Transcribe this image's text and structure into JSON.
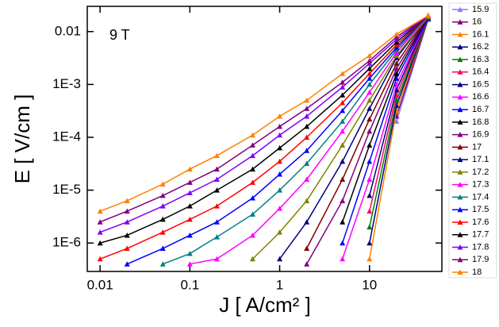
{
  "chart_data": {
    "type": "line",
    "annotation": "9 T",
    "x_label": "J [ A/cm² ]",
    "y_label": "E [ V/cm ]",
    "x_log": true,
    "y_log": true,
    "legend": "right",
    "xlim": [
      0.0072,
      64
    ],
    "ylim": [
      2.9e-07,
      0.03
    ],
    "xticks": [
      0.01,
      0.1,
      1,
      10
    ],
    "yticks": [
      {
        "value": 1e-06,
        "label": "1E-6"
      },
      {
        "value": 1e-05,
        "label": "1E-5"
      },
      {
        "value": 0.0001,
        "label": "1E-4"
      },
      {
        "value": 0.001,
        "label": "1E-3"
      },
      0.01
    ],
    "x": [
      0.01,
      0.02,
      0.05,
      0.1,
      0.2,
      0.5,
      1,
      2,
      5,
      10,
      20,
      45
    ],
    "series": [
      {
        "name": "15.9",
        "color": "#7f7fff",
        "values": [
          null,
          null,
          null,
          null,
          null,
          null,
          null,
          null,
          null,
          null,
          0.0002,
          0.017
        ]
      },
      {
        "name": "16",
        "color": "#800080",
        "values": [
          null,
          null,
          null,
          null,
          null,
          null,
          null,
          null,
          null,
          null,
          0.00025,
          0.017
        ]
      },
      {
        "name": "16.1",
        "color": "#ff8000",
        "values": [
          null,
          null,
          null,
          null,
          null,
          null,
          null,
          null,
          null,
          5e-07,
          0.00032,
          0.017
        ]
      },
      {
        "name": "16.2",
        "color": "#000080",
        "values": [
          null,
          null,
          null,
          null,
          null,
          null,
          null,
          null,
          null,
          1e-06,
          0.0004,
          0.017
        ]
      },
      {
        "name": "16.3",
        "color": "#008000",
        "values": [
          null,
          null,
          null,
          null,
          null,
          null,
          null,
          null,
          null,
          2e-06,
          0.0005,
          0.017
        ]
      },
      {
        "name": "16.4",
        "color": "#ff0066",
        "values": [
          null,
          null,
          null,
          null,
          null,
          null,
          null,
          null,
          null,
          4e-06,
          0.00063,
          0.018
        ]
      },
      {
        "name": "16.5",
        "color": "#000080",
        "values": [
          null,
          null,
          null,
          null,
          null,
          null,
          null,
          null,
          null,
          7.9e-06,
          0.00079,
          0.018
        ]
      },
      {
        "name": "16.6",
        "color": "#ff00ff",
        "values": [
          null,
          null,
          null,
          null,
          null,
          null,
          null,
          null,
          5e-07,
          1.6e-05,
          0.001,
          0.018
        ]
      },
      {
        "name": "16.7",
        "color": "#0000ff",
        "values": [
          null,
          null,
          null,
          null,
          null,
          null,
          null,
          null,
          1e-06,
          3.5e-05,
          0.0013,
          0.018
        ]
      },
      {
        "name": "16.8",
        "color": "#000000",
        "values": [
          null,
          null,
          null,
          null,
          null,
          null,
          null,
          null,
          2.5e-06,
          7.1e-05,
          0.0016,
          0.019
        ]
      },
      {
        "name": "16.9",
        "color": "#800080",
        "values": [
          null,
          null,
          null,
          null,
          null,
          null,
          null,
          4e-07,
          6.3e-06,
          0.00013,
          0.002,
          0.019
        ]
      },
      {
        "name": "17",
        "color": "#800000",
        "values": [
          null,
          null,
          null,
          null,
          null,
          null,
          null,
          7.9e-07,
          1.6e-05,
          0.00022,
          0.0025,
          0.019
        ]
      },
      {
        "name": "17.1",
        "color": "#000080",
        "values": [
          null,
          null,
          null,
          null,
          null,
          null,
          5e-07,
          2.5e-06,
          3.5e-05,
          0.00035,
          0.0032,
          0.019
        ]
      },
      {
        "name": "17.2",
        "color": "#808000",
        "values": [
          null,
          null,
          null,
          null,
          null,
          5e-07,
          1.6e-06,
          6.3e-06,
          7.1e-05,
          0.0005,
          0.0035,
          0.019
        ]
      },
      {
        "name": "17.3",
        "color": "#ff00ff",
        "values": [
          null,
          null,
          null,
          4e-07,
          5e-07,
          1.4e-06,
          4.5e-06,
          1.6e-05,
          0.00013,
          0.00071,
          0.004,
          0.02
        ]
      },
      {
        "name": "17.4",
        "color": "#008080",
        "values": [
          null,
          null,
          4e-07,
          6.3e-07,
          1.3e-06,
          3.5e-06,
          1e-05,
          3.2e-05,
          0.0002,
          0.001,
          0.0045,
          0.02
        ]
      },
      {
        "name": "17.5",
        "color": "#0000ff",
        "values": [
          null,
          4e-07,
          7.9e-07,
          1.4e-06,
          2.5e-06,
          7.1e-06,
          2e-05,
          5.6e-05,
          0.00032,
          0.0013,
          0.005,
          0.02
        ]
      },
      {
        "name": "17.6",
        "color": "#ff0000",
        "values": [
          5e-07,
          7.9e-07,
          1.6e-06,
          2.8e-06,
          5e-06,
          1.4e-05,
          3.5e-05,
          0.0001,
          0.00045,
          0.0016,
          0.0056,
          0.02
        ]
      },
      {
        "name": "17.7",
        "color": "#000000",
        "values": [
          1e-06,
          1.4e-06,
          2.8e-06,
          5e-06,
          1e-05,
          2.5e-05,
          6.3e-05,
          0.00016,
          0.00063,
          0.002,
          0.0063,
          0.02
        ]
      },
      {
        "name": "17.8",
        "color": "#8000ff",
        "values": [
          1.6e-06,
          2.5e-06,
          5e-06,
          8.9e-06,
          1.6e-05,
          4.5e-05,
          0.00011,
          0.00025,
          0.00089,
          0.0025,
          0.0071,
          0.02
        ]
      },
      {
        "name": "17.9",
        "color": "#800080",
        "values": [
          2.5e-06,
          4e-06,
          7.9e-06,
          1.4e-05,
          2.5e-05,
          7.1e-05,
          0.00016,
          0.00035,
          0.0011,
          0.0028,
          0.0079,
          0.02
        ]
      },
      {
        "name": "18",
        "color": "#ff8000",
        "values": [
          4e-06,
          6.3e-06,
          1.3e-05,
          2.5e-05,
          4.5e-05,
          0.00011,
          0.00025,
          0.0005,
          0.0016,
          0.0035,
          0.0089,
          0.02
        ]
      }
    ]
  }
}
